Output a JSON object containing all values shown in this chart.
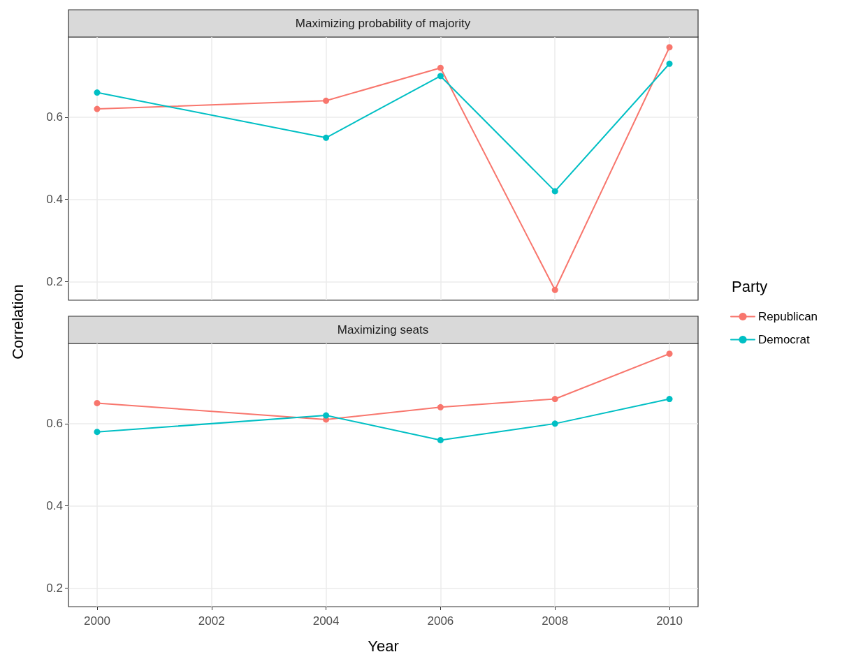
{
  "chart_data": [
    {
      "type": "line",
      "title": "Maximizing probability of majority",
      "ylabel": "Correlation",
      "legend_title": "Party",
      "legend": "right",
      "x": [
        2000,
        2004,
        2006,
        2008,
        2010
      ],
      "series": [
        {
          "name": "Republican",
          "color": "#f8766d",
          "values": [
            0.62,
            0.64,
            0.72,
            0.18,
            0.77
          ]
        },
        {
          "name": "Democrat",
          "color": "#00bfc4",
          "values": [
            0.66,
            0.55,
            0.7,
            0.42,
            0.73
          ]
        }
      ],
      "xlim": [
        1999.5,
        2010.5
      ],
      "xticks": [
        2000,
        2002,
        2004,
        2006,
        2008,
        2010
      ],
      "ylim": [
        0.155,
        0.795
      ],
      "yticks": [
        0.2,
        0.4,
        0.6
      ],
      "tick_labels": "y",
      "grid": true,
      "marker": "circle",
      "line_style": "solid"
    },
    {
      "type": "line",
      "title": "Maximizing seats",
      "xlabel": "Year",
      "x": [
        2000,
        2004,
        2006,
        2008,
        2010
      ],
      "series": [
        {
          "color": "#f8766d",
          "values": [
            0.65,
            0.61,
            0.64,
            0.66,
            0.77
          ]
        },
        {
          "color": "#00bfc4",
          "values": [
            0.58,
            0.62,
            0.56,
            0.6,
            0.66
          ]
        }
      ],
      "xlim": [
        1999.5,
        2010.5
      ],
      "xticks": [
        2000,
        2002,
        2004,
        2006,
        2008,
        2010
      ],
      "ylim": [
        0.155,
        0.795
      ],
      "yticks": [
        0.2,
        0.4,
        0.6
      ],
      "grid": true,
      "marker": "circle",
      "line_style": "solid"
    }
  ]
}
